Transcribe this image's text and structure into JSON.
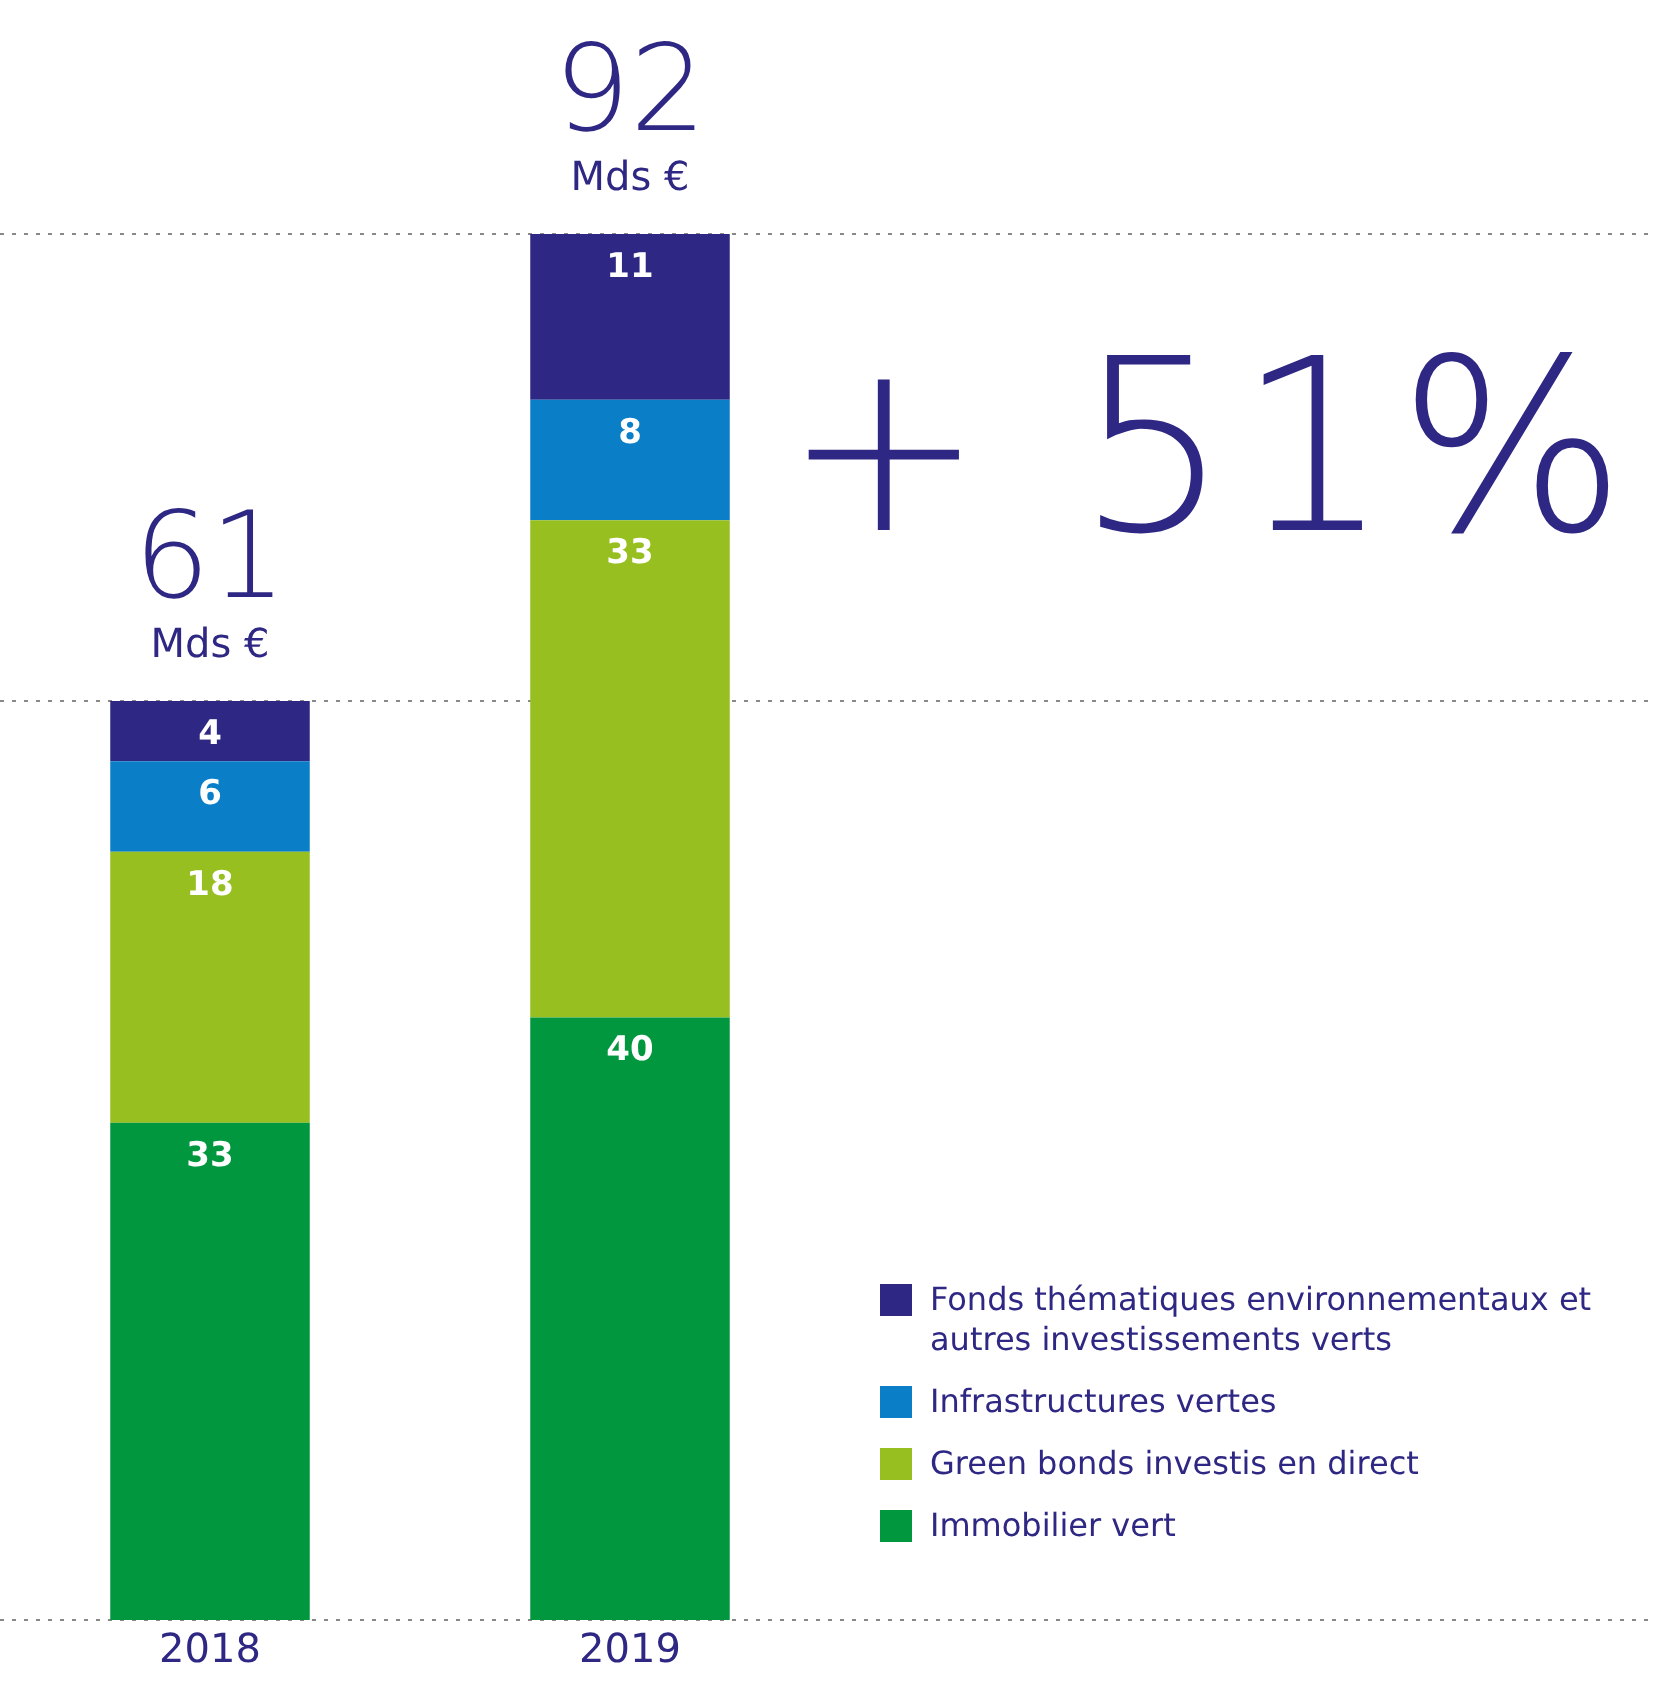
{
  "chart_data": {
    "type": "bar",
    "stacked": true,
    "categories": [
      "2018",
      "2019"
    ],
    "series": [
      {
        "name": "Immobilier vert",
        "color": "#00973e",
        "values": [
          33,
          40
        ]
      },
      {
        "name": "Green bonds investis en direct",
        "color": "#97bf1f",
        "values": [
          18,
          33
        ]
      },
      {
        "name": "Infrastructures vertes",
        "color": "#0a7fc8",
        "values": [
          6,
          8
        ]
      },
      {
        "name": "Fonds thématiques environnementaux et autres investissements verts",
        "color": "#2e2783",
        "values": [
          4,
          11
        ]
      }
    ],
    "ylim": [
      0,
      92
    ],
    "tick_labels": "x",
    "grid": false,
    "data_labels": true,
    "totals": [
      "61 Mds €",
      "92 Mds €"
    ],
    "annotations": [
      "+ 51%"
    ],
    "ref_lines": [
      {
        "axis": "y",
        "value": 0,
        "line_style": "dotted",
        "color": "#888888"
      },
      {
        "axis": "y",
        "value": 61,
        "line_style": "dotted",
        "color": "#888888"
      },
      {
        "axis": "y",
        "value": 92,
        "line_style": "dotted",
        "color": "#888888"
      }
    ],
    "legend": "bottom right"
  }
}
